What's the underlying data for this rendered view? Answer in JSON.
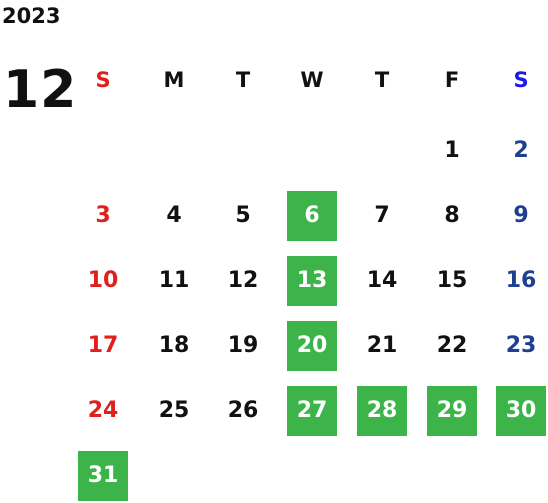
{
  "year": "2023",
  "month": "12",
  "weekdays": [
    "S",
    "M",
    "T",
    "W",
    "T",
    "F",
    "S"
  ],
  "weeks": [
    [
      null,
      null,
      null,
      null,
      null,
      1,
      2
    ],
    [
      3,
      4,
      5,
      6,
      7,
      8,
      9
    ],
    [
      10,
      11,
      12,
      13,
      14,
      15,
      16
    ],
    [
      17,
      18,
      19,
      20,
      21,
      22,
      23
    ],
    [
      24,
      25,
      26,
      27,
      28,
      29,
      30
    ],
    [
      31,
      null,
      null,
      null,
      null,
      null,
      null
    ]
  ],
  "highlighted_days": [
    6,
    13,
    20,
    27,
    28,
    29,
    30,
    31
  ]
}
